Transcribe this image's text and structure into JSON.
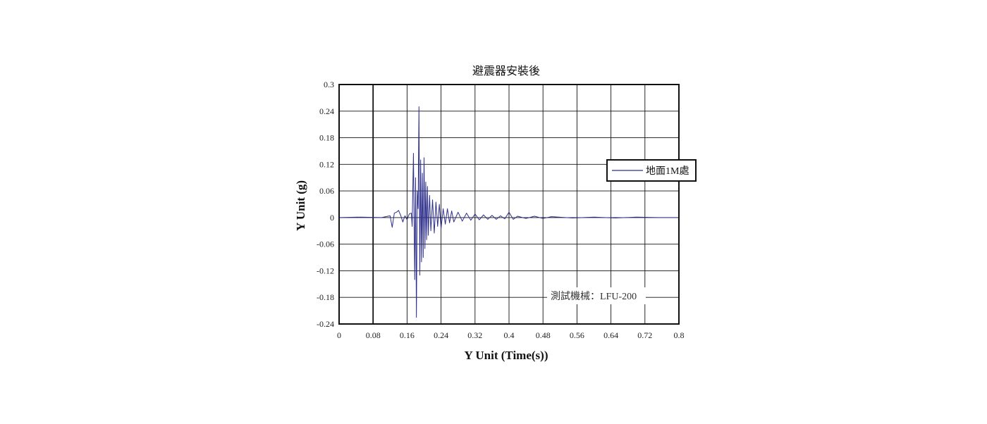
{
  "chart_data": {
    "type": "line",
    "title": "避震器安裝後",
    "xlabel": "Y Unit (Time(s))",
    "ylabel": "Y Unit (g)",
    "xlim": [
      0,
      0.8
    ],
    "ylim": [
      -0.24,
      0.3
    ],
    "x_ticks": [
      "0",
      "0.08",
      "0.16",
      "0.24",
      "0.32",
      "0.4",
      "0.48",
      "0.56",
      "0.64",
      "0.72",
      "0.8"
    ],
    "y_ticks": [
      "0.3",
      "0.24",
      "0.18",
      "0.12",
      "0.06",
      "0",
      "-0.06",
      "-0.12",
      "-0.18",
      "-0.24"
    ],
    "grid": true,
    "legend_position": "right",
    "annotation": "測試機械：LFU-200",
    "series": [
      {
        "name": "地面1M處",
        "color": "#2e2f8c",
        "x": [
          0,
          0.05,
          0.1,
          0.12,
          0.125,
          0.13,
          0.135,
          0.14,
          0.145,
          0.15,
          0.155,
          0.16,
          0.165,
          0.17,
          0.172,
          0.175,
          0.178,
          0.18,
          0.182,
          0.184,
          0.186,
          0.188,
          0.19,
          0.192,
          0.194,
          0.196,
          0.198,
          0.2,
          0.202,
          0.204,
          0.206,
          0.208,
          0.21,
          0.213,
          0.216,
          0.22,
          0.224,
          0.228,
          0.232,
          0.236,
          0.24,
          0.245,
          0.25,
          0.255,
          0.26,
          0.265,
          0.27,
          0.28,
          0.29,
          0.3,
          0.31,
          0.32,
          0.33,
          0.34,
          0.35,
          0.36,
          0.37,
          0.38,
          0.39,
          0.4,
          0.41,
          0.42,
          0.44,
          0.46,
          0.48,
          0.5,
          0.55,
          0.6,
          0.65,
          0.7,
          0.75,
          0.8
        ],
        "values": [
          0,
          0.001,
          0,
          0.004,
          -0.022,
          0.01,
          0.012,
          0.016,
          0.005,
          -0.01,
          0.004,
          -0.005,
          0.008,
          0.01,
          -0.02,
          0.145,
          -0.14,
          0.09,
          -0.225,
          0.06,
          0.02,
          0.25,
          -0.13,
          0.13,
          -0.1,
          0.1,
          -0.09,
          0.135,
          -0.07,
          0.08,
          -0.05,
          0.07,
          -0.04,
          0.05,
          -0.03,
          0.04,
          -0.035,
          0.035,
          -0.02,
          0.03,
          -0.025,
          0.02,
          -0.015,
          0.02,
          -0.012,
          0.015,
          -0.01,
          0.012,
          -0.008,
          0.01,
          -0.006,
          0.008,
          -0.005,
          0.006,
          -0.004,
          0.005,
          -0.004,
          0.004,
          -0.003,
          0.012,
          -0.004,
          0.003,
          -0.002,
          0.003,
          -0.002,
          0.002,
          -0.001,
          0.001,
          -0.001,
          0.001,
          0,
          0
        ]
      }
    ]
  }
}
